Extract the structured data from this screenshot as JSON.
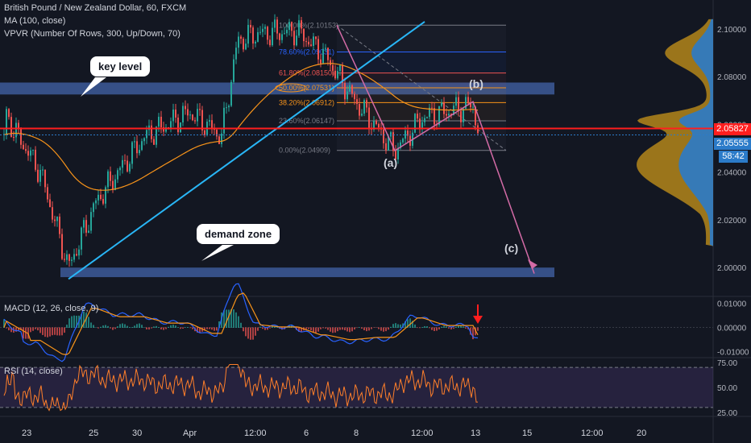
{
  "legend": {
    "title": "British Pound / New Zealand Dollar, 60, FXCM",
    "ma": "MA (100, close)",
    "vpvr": "VPVR (Number Of Rows, 300, Up/Down, 70)",
    "macd": "MACD (12, 26, close, 9)",
    "rsi": "RSI (14, close)"
  },
  "annotations": {
    "key_level": "key level",
    "demand_zone": "demand zone",
    "wave_a": "(a)",
    "wave_b": "(b)",
    "wave_c": "(c)"
  },
  "fib_labels": [
    "100.00%(2.10153)",
    "78.60%(2.09031)",
    "61.80%(2.08150)",
    "50.00%(2.07531)",
    "38.20%(2.06912)",
    "23.60%(2.06147)",
    "0.00%(2.04909)"
  ],
  "price_badges": {
    "current": "2.05827",
    "last": "2.05555",
    "countdown": "58:42"
  },
  "colors": {
    "bg": "#131722",
    "up": "#26a69a",
    "down": "#ef5350",
    "ma": "#f7931a",
    "trend": "#29b6f6",
    "zone": "#3d5a99",
    "red_line": "#ff1e1e",
    "pink": "#d36ba6",
    "vp_up": "#2b7bc9",
    "vp_down": "#c9961a",
    "rsi": "#ff7f2a"
  },
  "chart_data": [
    {
      "type": "candlestick",
      "title": "British Pound / New Zealand Dollar, 60, FXCM",
      "x_tick_labels": [
        "23",
        "25",
        "30",
        "Apr",
        "12:00",
        "6",
        "8",
        "12:00",
        "13",
        "15",
        "12:00",
        "20"
      ],
      "y_tick_labels": [
        "2.10000",
        "2.08000",
        "2.06000",
        "2.04000",
        "2.02000",
        "2.00000"
      ],
      "ylim": [
        1.994,
        2.106
      ],
      "approx_close_path": [
        {
          "x": "23",
          "y": 2.063
        },
        {
          "x": "24",
          "y": 2.04
        },
        {
          "x": "24 (low)",
          "y": 2.0
        },
        {
          "x": "25",
          "y": 2.028
        },
        {
          "x": "27",
          "y": 2.055
        },
        {
          "x": "30",
          "y": 2.065
        },
        {
          "x": "31",
          "y": 2.055
        },
        {
          "x": "31 (break)",
          "y": 2.095
        },
        {
          "x": "Apr",
          "y": 2.098
        },
        {
          "x": "12:00",
          "y": 2.099
        },
        {
          "x": "2 Apr",
          "y": 2.088
        },
        {
          "x": "6",
          "y": 2.07
        },
        {
          "x": "7 (a)",
          "y": 2.049
        },
        {
          "x": "8",
          "y": 2.063
        },
        {
          "x": "12:00 (b)",
          "y": 2.068
        },
        {
          "x": "12:00 last",
          "y": 2.0556
        }
      ],
      "horizontal_levels": [
        {
          "name": "current price",
          "value": 2.05827
        },
        {
          "name": "key level zone",
          "range": [
            2.0725,
            2.0775
          ]
        },
        {
          "name": "demand zone",
          "range": [
            1.996,
            2.0
          ]
        }
      ],
      "fibonacci": [
        {
          "ratio": "100.00%",
          "value": 2.10153
        },
        {
          "ratio": "78.60%",
          "value": 2.09031
        },
        {
          "ratio": "61.80%",
          "value": 2.0815
        },
        {
          "ratio": "50.00%",
          "value": 2.07531
        },
        {
          "ratio": "38.20%",
          "value": 2.06912
        },
        {
          "ratio": "23.60%",
          "value": 2.06147
        },
        {
          "ratio": "0.00%",
          "value": 2.04909
        }
      ]
    },
    {
      "type": "line",
      "title": "MACD (12, 26, close, 9)",
      "y_tick_labels": [
        "0.01000",
        "0.00000",
        "-0.01000"
      ],
      "ylim": [
        -0.0125,
        0.0125
      ]
    },
    {
      "type": "line",
      "title": "RSI (14, close)",
      "y_tick_labels": [
        "75.00",
        "50.00",
        "25.00"
      ],
      "ylim": [
        25,
        75
      ],
      "bands": [
        30,
        70
      ]
    }
  ]
}
